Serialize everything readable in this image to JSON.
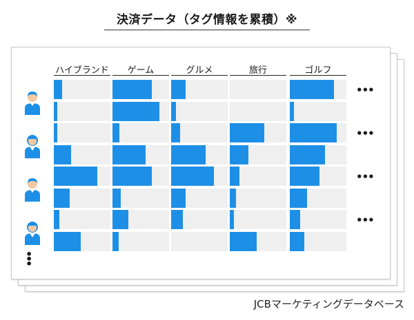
{
  "title": "決済データ（タグ情報を累積）※",
  "footer": "JCBマーケティングデータベース",
  "columns": [
    "ハイブランド",
    "ゲーム",
    "グルメ",
    "旅行",
    "ゴルフ"
  ],
  "row_ellipsis": "•••",
  "more_users": "⋮",
  "colors": {
    "bar": "#1e8fe6",
    "cell": "#efefef",
    "person": "#1e8fe6",
    "face": "#f2c9a0"
  },
  "users": [
    {
      "gender": "male",
      "rows": [
        [
          0.15,
          0.7,
          0.25,
          0.0,
          0.78
        ],
        [
          0.06,
          0.83,
          0.09,
          0.0,
          0.07
        ]
      ]
    },
    {
      "gender": "female",
      "rows": [
        [
          0.06,
          0.12,
          0.16,
          0.61,
          0.83
        ],
        [
          0.31,
          0.58,
          0.61,
          0.33,
          0.62
        ]
      ]
    },
    {
      "gender": "male",
      "rows": [
        [
          0.77,
          0.7,
          0.75,
          0.17,
          0.52
        ],
        [
          0.28,
          0.15,
          0.25,
          0.11,
          0.3
        ]
      ]
    },
    {
      "gender": "female",
      "rows": [
        [
          0.1,
          0.28,
          0.21,
          0.07,
          0.18
        ],
        [
          0.48,
          0.11,
          0.0,
          0.47,
          0.25
        ]
      ]
    }
  ]
}
